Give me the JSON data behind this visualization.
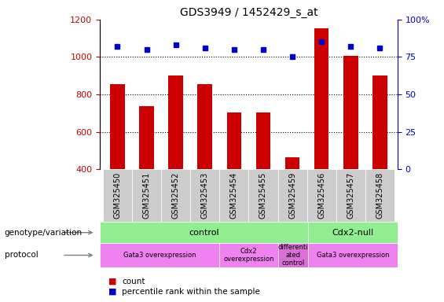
{
  "title": "GDS3949 / 1452429_s_at",
  "samples": [
    "GSM325450",
    "GSM325451",
    "GSM325452",
    "GSM325453",
    "GSM325454",
    "GSM325455",
    "GSM325459",
    "GSM325456",
    "GSM325457",
    "GSM325458"
  ],
  "counts": [
    855,
    735,
    900,
    855,
    705,
    705,
    465,
    1155,
    1005,
    900
  ],
  "percentile_ranks": [
    82,
    80,
    83,
    81,
    80,
    80,
    75,
    85,
    82,
    81
  ],
  "bar_color": "#cc0000",
  "dot_color": "#0000cc",
  "ylim_left": [
    400,
    1200
  ],
  "ylim_right": [
    0,
    100
  ],
  "yticks_left": [
    400,
    600,
    800,
    1000,
    1200
  ],
  "yticks_right": [
    0,
    25,
    50,
    75,
    100
  ],
  "grid_values": [
    600,
    800,
    1000
  ],
  "genotype_groups": [
    {
      "label": "control",
      "start": 0,
      "end": 7,
      "color": "#90ee90"
    },
    {
      "label": "Cdx2-null",
      "start": 7,
      "end": 10,
      "color": "#90ee90"
    }
  ],
  "protocol_groups": [
    {
      "label": "Gata3 overexpression",
      "start": 0,
      "end": 4,
      "color": "#ee82ee"
    },
    {
      "label": "Cdx2\noverexpression",
      "start": 4,
      "end": 6,
      "color": "#ee82ee"
    },
    {
      "label": "differenti\nated\ncontrol",
      "start": 6,
      "end": 7,
      "color": "#da70d6"
    },
    {
      "label": "Gata3 overexpression",
      "start": 7,
      "end": 10,
      "color": "#ee82ee"
    }
  ],
  "left_label_color": "#cc0000",
  "right_label_color": "#0000cc",
  "tick_label_bg": "#cccccc",
  "legend_items": [
    {
      "color": "#cc0000",
      "label": "count"
    },
    {
      "color": "#0000cc",
      "label": "percentile rank within the sample"
    }
  ]
}
